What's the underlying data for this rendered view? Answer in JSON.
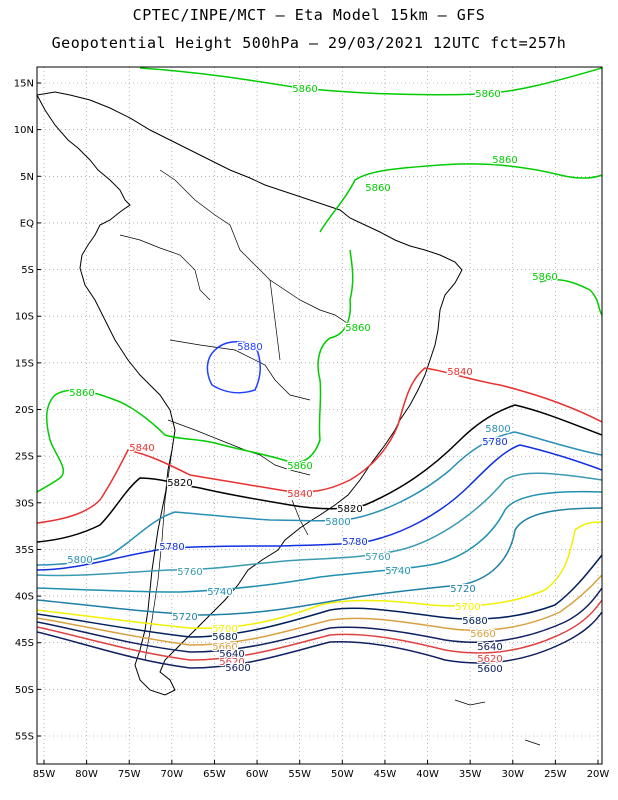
{
  "header": {
    "line1": "CPTEC/INPE/MCT –  Eta Model 15km – GFS",
    "line2": "Geopotential Height 500hPa – 29/03/2021 12UTC fct=257h"
  },
  "lat_labels": [
    "15N",
    "10N",
    "5N",
    "EQ",
    "5S",
    "10S",
    "15S",
    "20S",
    "25S",
    "30S",
    "35S",
    "40S",
    "45S",
    "50S",
    "55S"
  ],
  "lat_values": [
    15,
    10,
    5,
    0,
    -5,
    -10,
    -15,
    -20,
    -25,
    -30,
    -35,
    -40,
    -45,
    -50,
    -55
  ],
  "lon_labels": [
    "85W",
    "80W",
    "75W",
    "70W",
    "65W",
    "60W",
    "55W",
    "50W",
    "45W",
    "40W",
    "35W",
    "30W",
    "25W",
    "20W"
  ],
  "lon_values": [
    -85,
    -80,
    -75,
    -70,
    -65,
    -60,
    -55,
    -50,
    -45,
    -40,
    -35,
    -30,
    -25,
    -20
  ],
  "colors": {
    "c5880": "#1f3fff",
    "c5860": "#00cc00",
    "c5840": "#e83030",
    "c5820": "#000000",
    "c5800": "#2a8fb5",
    "c5780": "#1030e0",
    "c5760": "#3a9ab0",
    "c5740": "#2090b0",
    "c5720": "#1f7fa5",
    "c5700": "#f0f000",
    "c5680": "#00205a",
    "c5660": "#d8a040",
    "c5640": "#102060",
    "c5620": "#e04040",
    "c5600": "#102060"
  },
  "contour_labels": [
    {
      "text": "5860",
      "color": "c5860"
    },
    {
      "text": "5860",
      "color": "c5860"
    },
    {
      "text": "5860",
      "color": "c5860"
    },
    {
      "text": "5860",
      "color": "c5860"
    },
    {
      "text": "5860",
      "color": "c5860"
    },
    {
      "text": "5860",
      "color": "c5860"
    },
    {
      "text": "5860",
      "color": "c5860"
    },
    {
      "text": "5860",
      "color": "c5860"
    },
    {
      "text": "5880",
      "color": "c5880"
    },
    {
      "text": "5840",
      "color": "c5840"
    },
    {
      "text": "5840",
      "color": "c5840"
    },
    {
      "text": "5840",
      "color": "c5840"
    },
    {
      "text": "5820",
      "color": "c5820"
    },
    {
      "text": "5820",
      "color": "c5820"
    },
    {
      "text": "5800",
      "color": "c5800"
    },
    {
      "text": "5800",
      "color": "c5800"
    },
    {
      "text": "5800",
      "color": "c5800"
    },
    {
      "text": "5780",
      "color": "c5780"
    },
    {
      "text": "5780",
      "color": "c5780"
    },
    {
      "text": "5780",
      "color": "c5780"
    },
    {
      "text": "5760",
      "color": "c5760"
    },
    {
      "text": "5760",
      "color": "c5760"
    },
    {
      "text": "5740",
      "color": "c5740"
    },
    {
      "text": "5740",
      "color": "c5740"
    },
    {
      "text": "5720",
      "color": "c5720"
    },
    {
      "text": "5720",
      "color": "c5720"
    },
    {
      "text": "5700",
      "color": "c5700"
    },
    {
      "text": "5700",
      "color": "c5700"
    },
    {
      "text": "5680",
      "color": "c5680"
    },
    {
      "text": "5680",
      "color": "c5680"
    },
    {
      "text": "5660",
      "color": "c5660"
    },
    {
      "text": "5660",
      "color": "c5660"
    },
    {
      "text": "5640",
      "color": "c5640"
    },
    {
      "text": "5640",
      "color": "c5640"
    },
    {
      "text": "5620",
      "color": "c5620"
    },
    {
      "text": "5620",
      "color": "c5620"
    },
    {
      "text": "5600",
      "color": "c5600"
    },
    {
      "text": "5600",
      "color": "c5600"
    }
  ]
}
